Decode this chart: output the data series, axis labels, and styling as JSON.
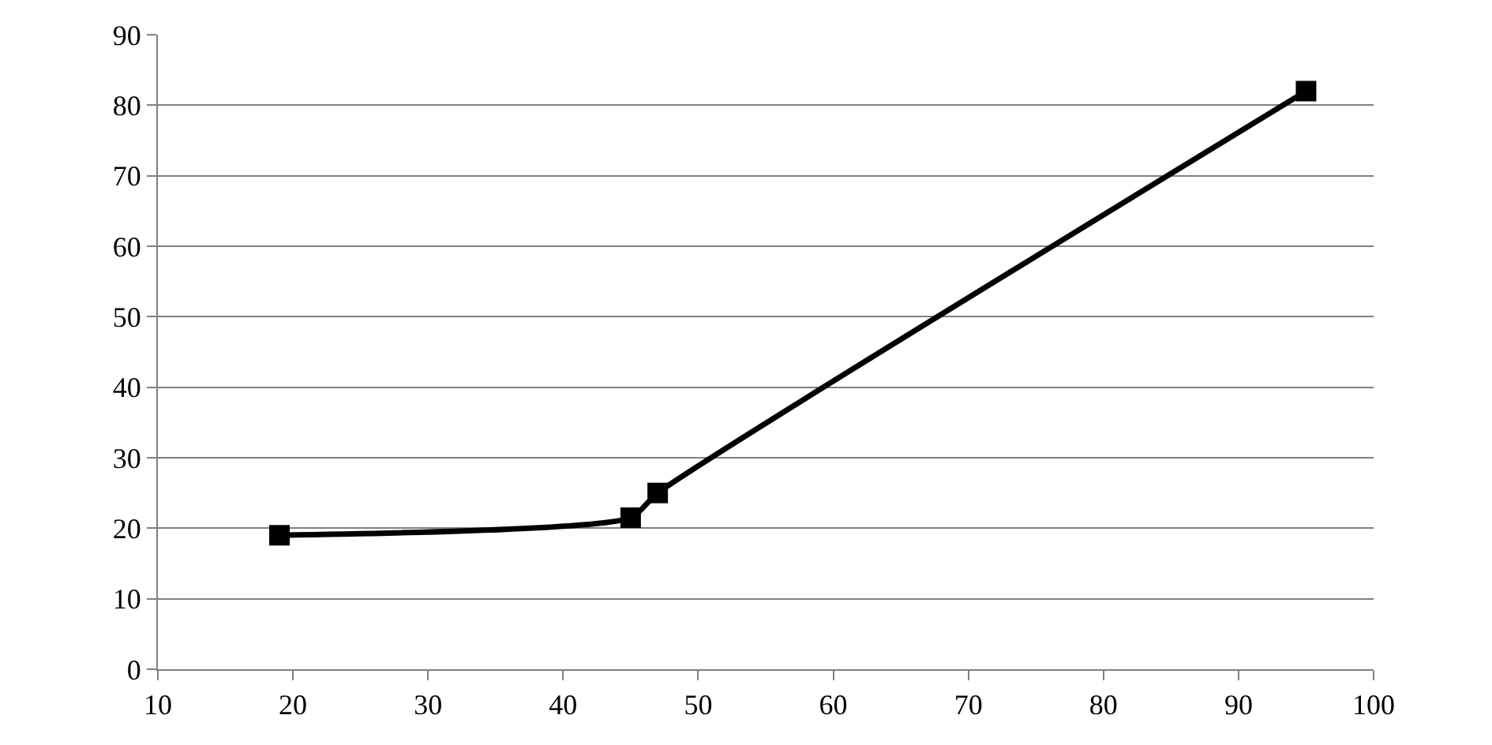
{
  "chart_data": {
    "type": "line",
    "x": [
      19,
      45,
      47,
      95
    ],
    "series": [
      {
        "color": "#000000",
        "values": [
          19,
          21.5,
          25,
          82
        ]
      }
    ],
    "xlim": [
      10,
      100
    ],
    "xticks": [
      10,
      20,
      30,
      40,
      50,
      60,
      70,
      80,
      90,
      100
    ],
    "ylim": [
      0,
      90
    ],
    "yticks": [
      0,
      10,
      20,
      30,
      40,
      50,
      60,
      70,
      80,
      90
    ],
    "grid": "y",
    "marker": "square",
    "line_style": "solid"
  }
}
